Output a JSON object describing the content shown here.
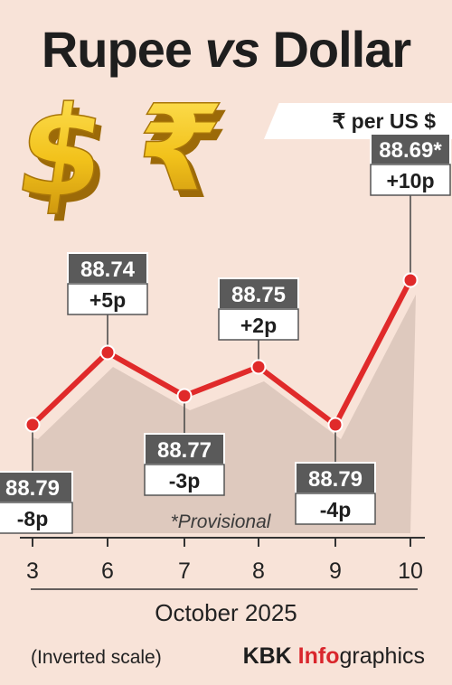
{
  "title_part1": "Rupee",
  "title_part2": "vs",
  "title_part3": "Dollar",
  "unit_label": "₹ per US $",
  "footnote": "*Provisional",
  "scale_note": "(Inverted scale)",
  "credit": {
    "part1": "KBK ",
    "part2": "Info",
    "part3": "graphics"
  },
  "colors": {
    "background": "#f8e3d8",
    "line": "#e02a2a",
    "label_dark": "#5a5a5a",
    "shadow": "#d6c0b6"
  },
  "icons": [
    "dollar-sign-3d",
    "rupee-sign-3d"
  ],
  "chart_data": {
    "type": "line",
    "title": "Rupee vs Dollar",
    "xlabel": "October 2025",
    "ylabel": "₹ per US $",
    "inverted_y": true,
    "grid": false,
    "categories": [
      "3",
      "6",
      "7",
      "8",
      "9",
      "10"
    ],
    "series": [
      {
        "values": [
          88.79,
          88.74,
          88.77,
          88.75,
          88.79,
          88.69
        ],
        "value_labels": [
          "88.79",
          "88.74",
          "88.77",
          "88.75",
          "88.79",
          "88.69*"
        ],
        "changes": [
          "-8p",
          "+5p",
          "-3p",
          "+2p",
          "-4p",
          "+10p"
        ]
      }
    ]
  }
}
